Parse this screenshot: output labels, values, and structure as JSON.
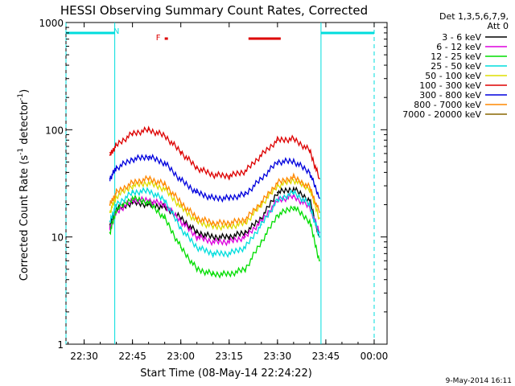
{
  "chart_data": {
    "type": "line",
    "title": "HESSI Observing Summary Count Rates, Corrected",
    "xlabel": "Start Time (08-May-14 22:24:22)",
    "ylabel_main": "Corrected Count Rate (s",
    "ylabel_sup1": "-1",
    "ylabel_mid": " detector",
    "ylabel_sup2": "-1",
    "ylabel_end": ")",
    "footer": "9-May-2014 16:11",
    "y_scale": "log",
    "ylim": [
      1,
      1000
    ],
    "xlim": [
      "22:24:22",
      "00:04:00"
    ],
    "x_ticks": [
      "22:30",
      "22:45",
      "23:00",
      "23:15",
      "23:30",
      "23:45",
      "00:00"
    ],
    "y_ticks": [
      "1",
      "10",
      "100",
      "1000"
    ],
    "legend_header": [
      "Det 1,3,5,6,7,9,",
      "Att 0"
    ],
    "legend_position": "right",
    "series": [
      {
        "name": "3 - 6 keV",
        "color": "#000000",
        "x": [
          "22:38",
          "22:40",
          "22:45",
          "22:50",
          "22:55",
          "23:00",
          "23:05",
          "23:10",
          "23:15",
          "23:20",
          "23:25",
          "23:30",
          "23:35",
          "23:40",
          "23:43"
        ],
        "y": [
          13,
          18,
          21,
          20,
          19,
          15,
          11,
          10,
          10,
          11,
          15,
          26,
          28,
          22,
          10
        ]
      },
      {
        "name": "6 - 12 keV",
        "color": "#dd00dd",
        "x": [
          "22:38",
          "22:40",
          "22:45",
          "22:50",
          "22:55",
          "23:00",
          "23:05",
          "23:10",
          "23:15",
          "23:20",
          "23:25",
          "23:30",
          "23:35",
          "23:40",
          "23:43"
        ],
        "y": [
          12,
          17,
          22,
          22,
          20,
          14,
          10,
          9,
          9,
          10,
          14,
          22,
          24,
          19,
          11
        ]
      },
      {
        "name": "12 - 25 keV",
        "color": "#00dd00",
        "x": [
          "22:38",
          "22:40",
          "22:45",
          "22:50",
          "22:55",
          "23:00",
          "23:05",
          "23:10",
          "23:15",
          "23:20",
          "23:25",
          "23:30",
          "23:35",
          "23:40",
          "23:43"
        ],
        "y": [
          11,
          18,
          23,
          21,
          15,
          8,
          5,
          4.5,
          4.5,
          5,
          9,
          16,
          19,
          14,
          6
        ]
      },
      {
        "name": "25 - 50 keV",
        "color": "#00dddd",
        "x": [
          "22:38",
          "22:40",
          "22:45",
          "22:50",
          "22:55",
          "23:00",
          "23:05",
          "23:10",
          "23:15",
          "23:20",
          "23:25",
          "23:30",
          "23:35",
          "23:40",
          "23:43"
        ],
        "y": [
          14,
          20,
          26,
          27,
          22,
          12,
          8,
          7,
          7,
          8,
          13,
          22,
          26,
          20,
          10
        ]
      },
      {
        "name": "50 - 100 keV",
        "color": "#dddd00",
        "x": [
          "22:38",
          "22:40",
          "22:45",
          "22:50",
          "22:55",
          "23:00",
          "23:05",
          "23:10",
          "23:15",
          "23:20",
          "23:25",
          "23:30",
          "23:35",
          "23:40",
          "23:43"
        ],
        "y": [
          17,
          24,
          30,
          32,
          28,
          19,
          14,
          12.5,
          12.5,
          13.5,
          20,
          30,
          34,
          28,
          15
        ]
      },
      {
        "name": "100 - 300 keV",
        "color": "#dd0000",
        "x": [
          "22:38",
          "22:40",
          "22:45",
          "22:50",
          "22:55",
          "23:00",
          "23:05",
          "23:10",
          "23:15",
          "23:20",
          "23:25",
          "23:30",
          "23:35",
          "23:40",
          "23:43"
        ],
        "y": [
          58,
          72,
          92,
          100,
          88,
          62,
          44,
          38,
          37,
          41,
          58,
          80,
          82,
          64,
          35
        ]
      },
      {
        "name": "300 - 800 keV",
        "color": "#0000dd",
        "x": [
          "22:38",
          "22:40",
          "22:45",
          "22:50",
          "22:55",
          "23:00",
          "23:05",
          "23:10",
          "23:15",
          "23:20",
          "23:25",
          "23:30",
          "23:35",
          "23:40",
          "23:43"
        ],
        "y": [
          35,
          44,
          53,
          56,
          49,
          34,
          26,
          23,
          23,
          25,
          35,
          50,
          51,
          40,
          23
        ]
      },
      {
        "name": "800 - 7000 keV",
        "color": "#ff8800",
        "x": [
          "22:38",
          "22:40",
          "22:45",
          "22:50",
          "22:55",
          "23:00",
          "23:05",
          "23:10",
          "23:15",
          "23:20",
          "23:25",
          "23:30",
          "23:35",
          "23:40",
          "23:43"
        ],
        "y": [
          20,
          26,
          32,
          35,
          31,
          21,
          15,
          13.5,
          13.5,
          14.5,
          21,
          32,
          36,
          29,
          17
        ]
      },
      {
        "name": "7000 - 20000 keV",
        "color": "#886600",
        "x": [],
        "y": []
      }
    ],
    "annotations": [
      {
        "text": "N",
        "color": "#00dddd",
        "x": "22:40"
      },
      {
        "text": "F",
        "color": "#dd0000",
        "x": "22:53"
      }
    ],
    "night_intervals": [
      {
        "start": "22:24:22",
        "end": "22:39:30"
      },
      {
        "start": "23:43:30",
        "end": "00:00:00"
      }
    ],
    "flare_intervals": [
      {
        "start": "22:55",
        "end": "22:56"
      },
      {
        "start": "23:21",
        "end": "23:31"
      }
    ]
  }
}
